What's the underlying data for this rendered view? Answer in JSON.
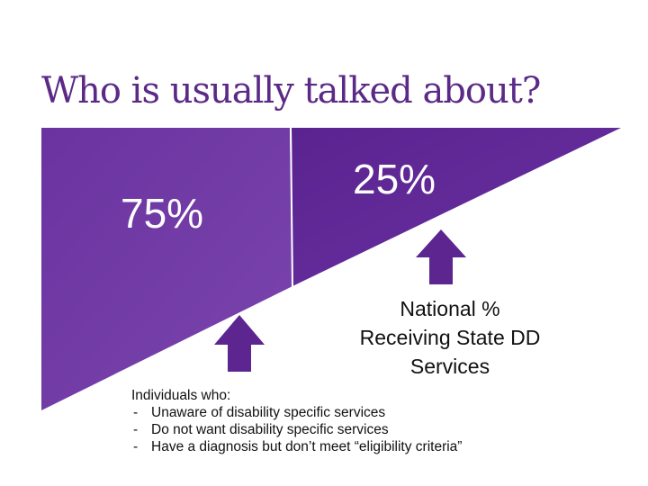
{
  "title": "Who is usually talked about?",
  "segments": {
    "left_percent": "75%",
    "right_percent": "25%"
  },
  "national_label": {
    "line1": "National %",
    "line2": "Receiving State DD",
    "line3": "Services"
  },
  "individuals": {
    "heading": "Individuals who:",
    "items": [
      "Unaware of disability specific services",
      "Do not want disability specific services",
      "Have a diagnosis but don’t meet “eligibility criteria”"
    ]
  },
  "colors": {
    "title": "#5b2a86",
    "purple_left": "#6f3aa2",
    "purple_right": "#5c2590",
    "arrow": "#5c2590"
  },
  "icons": [
    "up-arrow-icon",
    "up-arrow-icon"
  ]
}
